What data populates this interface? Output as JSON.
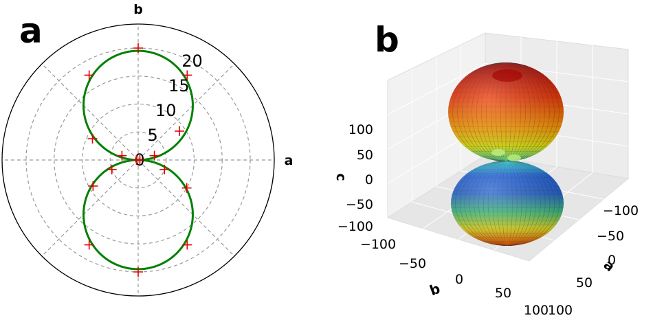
{
  "panel_labels": {
    "left": "a",
    "right": "b"
  },
  "chart_data": [
    {
      "type": "polar",
      "panel": "a",
      "axis_labels": {
        "top": "b",
        "right": "a"
      },
      "radial_ticks": [
        0,
        5,
        10,
        15,
        20
      ],
      "rlim": [
        0,
        20
      ],
      "angle_gridlines_deg": [
        0,
        45,
        90,
        135,
        180,
        225,
        270,
        315
      ],
      "grid": true,
      "fit_curve": {
        "label": "",
        "model": "r = 19.5 * |sin(theta)|",
        "color": "#008000"
      },
      "markers": {
        "symbol": "+",
        "color": "#e00000",
        "points": [
          {
            "theta_deg": 90,
            "r": 20
          },
          {
            "theta_deg": 120,
            "r": 17.5
          },
          {
            "theta_deg": 60,
            "r": 17.5
          },
          {
            "theta_deg": 155,
            "r": 9
          },
          {
            "theta_deg": 35,
            "r": 9
          },
          {
            "theta_deg": 165,
            "r": 3
          },
          {
            "theta_deg": 15,
            "r": 3
          },
          {
            "theta_deg": 180,
            "r": 0.3
          },
          {
            "theta_deg": 0,
            "r": 0.3
          },
          {
            "theta_deg": 200,
            "r": 5
          },
          {
            "theta_deg": 340,
            "r": 5
          },
          {
            "theta_deg": 210,
            "r": 9.3
          },
          {
            "theta_deg": 330,
            "r": 10
          },
          {
            "theta_deg": 240,
            "r": 17.5
          },
          {
            "theta_deg": 300,
            "r": 17.5
          },
          {
            "theta_deg": 270,
            "r": 20
          }
        ]
      }
    },
    {
      "type": "surface3d",
      "panel": "b",
      "axis_labels": {
        "a": "a",
        "b": "b",
        "c": "c"
      },
      "ticks": {
        "a": [
          "−100",
          "−50",
          "0",
          "50",
          "100"
        ],
        "b": [
          "−100",
          "−50",
          "0",
          "50",
          "100"
        ],
        "c": [
          "100",
          "50",
          "0",
          "−50",
          "−100"
        ]
      },
      "xlim": [
        -100,
        100
      ],
      "ylim": [
        -100,
        100
      ],
      "zlim": [
        -100,
        100
      ],
      "colormap": "jet",
      "shape": "two-lobe surface along c"
    }
  ]
}
